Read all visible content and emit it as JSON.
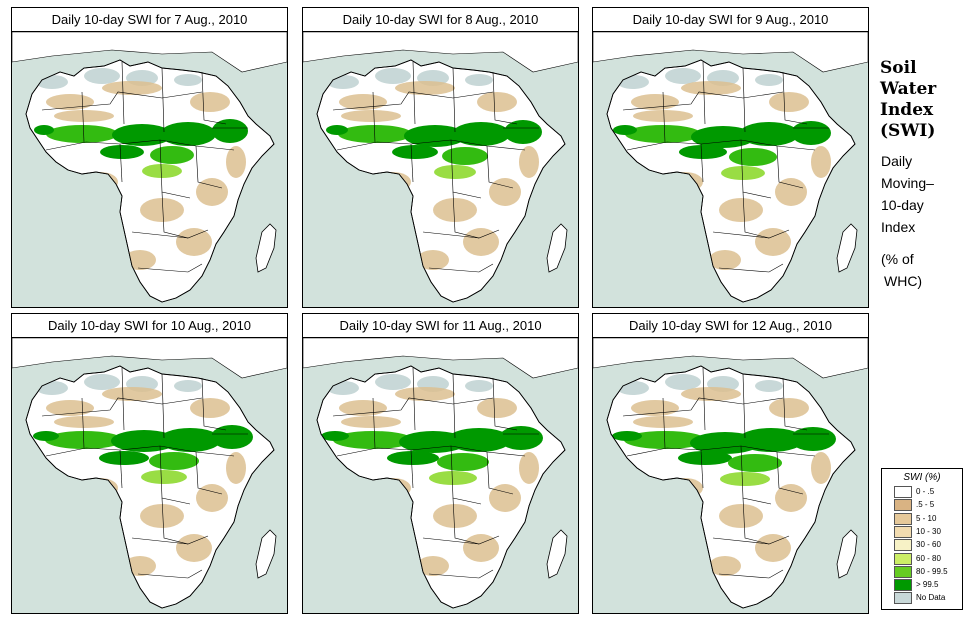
{
  "panels": [
    {
      "title": "Daily 10-day SWI for  7 Aug., 2010",
      "date": "7 Aug., 2010"
    },
    {
      "title": "Daily 10-day SWI for  8 Aug., 2010",
      "date": "8 Aug., 2010"
    },
    {
      "title": "Daily 10-day SWI for  9 Aug., 2010",
      "date": "9 Aug., 2010"
    },
    {
      "title": "Daily 10-day SWI for 10 Aug., 2010",
      "date": "10 Aug., 2010"
    },
    {
      "title": "Daily 10-day SWI for 11 Aug., 2010",
      "date": "11 Aug., 2010"
    },
    {
      "title": "Daily 10-day SWI for 12 Aug., 2010",
      "date": "12 Aug., 2010"
    }
  ],
  "side": {
    "title_lines": [
      "Soil",
      "Water",
      "Index",
      "(SWI)"
    ],
    "subtitle_lines": [
      "Daily",
      "Moving–",
      "10-day",
      "Index"
    ],
    "unit_lines": [
      "(% of",
      "WHC)"
    ]
  },
  "legend": {
    "title": "SWI (%)",
    "classes": [
      {
        "label": "0 - .5",
        "color": "#ffffff"
      },
      {
        "label": ".5 - 5",
        "color": "#d9b383"
      },
      {
        "label": "5 - 10",
        "color": "#e6c99a"
      },
      {
        "label": "10 - 30",
        "color": "#f2dcb0"
      },
      {
        "label": "30 - 60",
        "color": "#f7f2c6"
      },
      {
        "label": "60 - 80",
        "color": "#ccee66"
      },
      {
        "label": "80 - 99.5",
        "color": "#66cc22"
      },
      {
        "label": "> 99.5",
        "color": "#009900"
      },
      {
        "label": "No Data",
        "color": "#c8d8d8"
      }
    ]
  },
  "colors": {
    "ocean": "#d2e2dc",
    "land_dry": "#ffffff",
    "very_wet": "#009900",
    "wet": "#33bb11",
    "moist": "#99dd44",
    "tan": "#dcc090",
    "no_data": "#c8d8d8"
  }
}
